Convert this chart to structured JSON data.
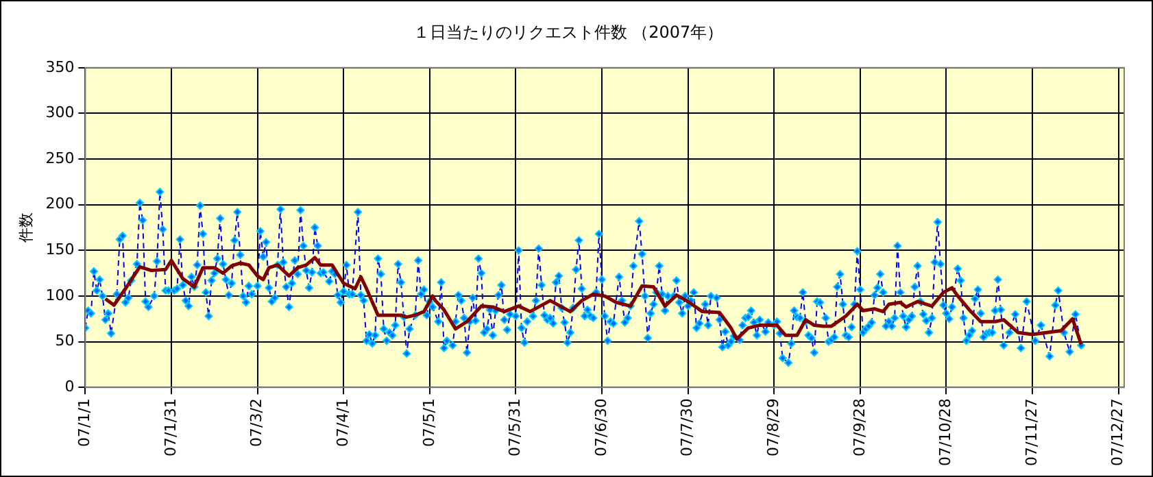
{
  "chart_data": {
    "type": "line",
    "title": "１日当たりのリクエスト件数 （2007年）",
    "ylabel": "件数",
    "xlim": [
      "2007-01-01",
      "2007-12-29"
    ],
    "xticks": [
      {
        "value": "2007-01-01",
        "label": "07/1/1"
      },
      {
        "value": "2007-01-31",
        "label": "07/1/31"
      },
      {
        "value": "2007-03-02",
        "label": "07/3/2"
      },
      {
        "value": "2007-04-01",
        "label": "07/4/1"
      },
      {
        "value": "2007-05-01",
        "label": "07/5/1"
      },
      {
        "value": "2007-05-31",
        "label": "07/5/31"
      },
      {
        "value": "2007-06-30",
        "label": "07/6/30"
      },
      {
        "value": "2007-07-30",
        "label": "07/7/30"
      },
      {
        "value": "2007-08-29",
        "label": "07/8/29"
      },
      {
        "value": "2007-09-28",
        "label": "07/9/28"
      },
      {
        "value": "2007-10-28",
        "label": "07/10/28"
      },
      {
        "value": "2007-11-27",
        "label": "07/11/27"
      },
      {
        "value": "2007-12-27",
        "label": "07/12/27"
      }
    ],
    "ylim": [
      0,
      350
    ],
    "yticks": [
      0,
      50,
      100,
      150,
      200,
      250,
      300,
      350
    ],
    "grid": true,
    "legend": false,
    "series": [
      {
        "color": "#0066ff",
        "marker": "diamond",
        "line_style": "dashed",
        "x": [
          "2007-01-01",
          "2007-01-02",
          "2007-01-03",
          "2007-01-04",
          "2007-01-05",
          "2007-01-06",
          "2007-01-07",
          "2007-01-08",
          "2007-01-09",
          "2007-01-10",
          "2007-01-12",
          "2007-01-13",
          "2007-01-14",
          "2007-01-15",
          "2007-01-16",
          "2007-01-17",
          "2007-01-19",
          "2007-01-20",
          "2007-01-21",
          "2007-01-22",
          "2007-01-23",
          "2007-01-25",
          "2007-01-26",
          "2007-01-27",
          "2007-01-28",
          "2007-01-29",
          "2007-01-30",
          "2007-02-01",
          "2007-02-02",
          "2007-02-03",
          "2007-02-04",
          "2007-02-05",
          "2007-02-06",
          "2007-02-07",
          "2007-02-08",
          "2007-02-09",
          "2007-02-10",
          "2007-02-11",
          "2007-02-12",
          "2007-02-13",
          "2007-02-14",
          "2007-02-15",
          "2007-02-16",
          "2007-02-17",
          "2007-02-18",
          "2007-02-19",
          "2007-02-20",
          "2007-02-21",
          "2007-02-22",
          "2007-02-23",
          "2007-02-24",
          "2007-02-25",
          "2007-02-26",
          "2007-02-27",
          "2007-02-28",
          "2007-03-02",
          "2007-03-03",
          "2007-03-04",
          "2007-03-05",
          "2007-03-06",
          "2007-03-07",
          "2007-03-08",
          "2007-03-09",
          "2007-03-10",
          "2007-03-11",
          "2007-03-12",
          "2007-03-13",
          "2007-03-14",
          "2007-03-15",
          "2007-03-16",
          "2007-03-17",
          "2007-03-18",
          "2007-03-19",
          "2007-03-20",
          "2007-03-21",
          "2007-03-22",
          "2007-03-23",
          "2007-03-24",
          "2007-03-25",
          "2007-03-27",
          "2007-03-28",
          "2007-03-29",
          "2007-03-30",
          "2007-03-31",
          "2007-04-01",
          "2007-04-02",
          "2007-04-03",
          "2007-04-04",
          "2007-04-06",
          "2007-04-07",
          "2007-04-08",
          "2007-04-09",
          "2007-04-10",
          "2007-04-11",
          "2007-04-12",
          "2007-04-13",
          "2007-04-14",
          "2007-04-15",
          "2007-04-16",
          "2007-04-17",
          "2007-04-18",
          "2007-04-19",
          "2007-04-20",
          "2007-04-21",
          "2007-04-22",
          "2007-04-23",
          "2007-04-24",
          "2007-04-26",
          "2007-04-27",
          "2007-04-28",
          "2007-04-29",
          "2007-04-30",
          "2007-05-01",
          "2007-05-02",
          "2007-05-04",
          "2007-05-05",
          "2007-05-06",
          "2007-05-07",
          "2007-05-09",
          "2007-05-10",
          "2007-05-11",
          "2007-05-12",
          "2007-05-13",
          "2007-05-14",
          "2007-05-15",
          "2007-05-16",
          "2007-05-17",
          "2007-05-18",
          "2007-05-19",
          "2007-05-20",
          "2007-05-21",
          "2007-05-22",
          "2007-05-23",
          "2007-05-24",
          "2007-05-25",
          "2007-05-26",
          "2007-05-27",
          "2007-05-28",
          "2007-05-29",
          "2007-05-31",
          "2007-06-01",
          "2007-06-02",
          "2007-06-03",
          "2007-06-04",
          "2007-06-06",
          "2007-06-07",
          "2007-06-08",
          "2007-06-09",
          "2007-06-10",
          "2007-06-11",
          "2007-06-12",
          "2007-06-13",
          "2007-06-14",
          "2007-06-15",
          "2007-06-16",
          "2007-06-17",
          "2007-06-18",
          "2007-06-19",
          "2007-06-20",
          "2007-06-21",
          "2007-06-22",
          "2007-06-23",
          "2007-06-24",
          "2007-06-25",
          "2007-06-26",
          "2007-06-27",
          "2007-06-28",
          "2007-06-29",
          "2007-06-30",
          "2007-07-01",
          "2007-07-02",
          "2007-07-03",
          "2007-07-04",
          "2007-07-06",
          "2007-07-07",
          "2007-07-08",
          "2007-07-09",
          "2007-07-10",
          "2007-07-11",
          "2007-07-13",
          "2007-07-14",
          "2007-07-15",
          "2007-07-16",
          "2007-07-17",
          "2007-07-18",
          "2007-07-19",
          "2007-07-20",
          "2007-07-21",
          "2007-07-22",
          "2007-07-23",
          "2007-07-25",
          "2007-07-26",
          "2007-07-27",
          "2007-07-28",
          "2007-07-29",
          "2007-07-30",
          "2007-07-31",
          "2007-08-01",
          "2007-08-02",
          "2007-08-03",
          "2007-08-05",
          "2007-08-06",
          "2007-08-07",
          "2007-08-09",
          "2007-08-10",
          "2007-08-11",
          "2007-08-12",
          "2007-08-13",
          "2007-08-14",
          "2007-08-15",
          "2007-08-17",
          "2007-08-18",
          "2007-08-19",
          "2007-08-20",
          "2007-08-21",
          "2007-08-22",
          "2007-08-23",
          "2007-08-24",
          "2007-08-26",
          "2007-08-27",
          "2007-08-29",
          "2007-08-30",
          "2007-08-31",
          "2007-09-01",
          "2007-09-03",
          "2007-09-04",
          "2007-09-05",
          "2007-09-06",
          "2007-09-07",
          "2007-09-08",
          "2007-09-09",
          "2007-09-10",
          "2007-09-11",
          "2007-09-12",
          "2007-09-13",
          "2007-09-14",
          "2007-09-16",
          "2007-09-17",
          "2007-09-18",
          "2007-09-19",
          "2007-09-20",
          "2007-09-21",
          "2007-09-22",
          "2007-09-23",
          "2007-09-24",
          "2007-09-25",
          "2007-09-26",
          "2007-09-27",
          "2007-09-28",
          "2007-09-29",
          "2007-09-30",
          "2007-10-01",
          "2007-10-02",
          "2007-10-03",
          "2007-10-04",
          "2007-10-05",
          "2007-10-06",
          "2007-10-07",
          "2007-10-08",
          "2007-10-09",
          "2007-10-10",
          "2007-10-11",
          "2007-10-12",
          "2007-10-13",
          "2007-10-14",
          "2007-10-15",
          "2007-10-16",
          "2007-10-17",
          "2007-10-18",
          "2007-10-19",
          "2007-10-20",
          "2007-10-21",
          "2007-10-22",
          "2007-10-23",
          "2007-10-24",
          "2007-10-25",
          "2007-10-26",
          "2007-10-27",
          "2007-10-28",
          "2007-10-29",
          "2007-10-30",
          "2007-11-01",
          "2007-11-02",
          "2007-11-03",
          "2007-11-04",
          "2007-11-05",
          "2007-11-06",
          "2007-11-07",
          "2007-11-08",
          "2007-11-09",
          "2007-11-10",
          "2007-11-11",
          "2007-11-12",
          "2007-11-13",
          "2007-11-14",
          "2007-11-15",
          "2007-11-16",
          "2007-11-17",
          "2007-11-19",
          "2007-11-21",
          "2007-11-23",
          "2007-11-25",
          "2007-11-28",
          "2007-11-30",
          "2007-12-03",
          "2007-12-05",
          "2007-12-06",
          "2007-12-08",
          "2007-12-10",
          "2007-12-12",
          "2007-12-14"
        ],
        "values": [
          65,
          84,
          81,
          127,
          106,
          118,
          100,
          74,
          81,
          59,
          102,
          162,
          166,
          93,
          98,
          117,
          135,
          202,
          183,
          94,
          88,
          100,
          138,
          214,
          173,
          106,
          106,
          106,
          108,
          162,
          112,
          95,
          89,
          121,
          110,
          134,
          199,
          168,
          104,
          78,
          117,
          125,
          141,
          185,
          135,
          118,
          101,
          114,
          161,
          192,
          145,
          100,
          93,
          111,
          102,
          111,
          171,
          143,
          159,
          109,
          94,
          98,
          134,
          195,
          137,
          110,
          88,
          114,
          139,
          124,
          194,
          155,
          128,
          109,
          126,
          175,
          155,
          125,
          126,
          116,
          127,
          124,
          101,
          93,
          105,
          134,
          102,
          102,
          192,
          101,
          95,
          51,
          58,
          48,
          57,
          141,
          124,
          64,
          51,
          60,
          57,
          68,
          135,
          115,
          77,
          37,
          64,
          79,
          139,
          102,
          107,
          79,
          94,
          88,
          72,
          115,
          43,
          51,
          46,
          72,
          101,
          95,
          76,
          38,
          72,
          98,
          73,
          141,
          125,
          60,
          64,
          85,
          57,
          84,
          101,
          112,
          74,
          63,
          80,
          78,
          150,
          65,
          49,
          72,
          78,
          95,
          152,
          112,
          79,
          74,
          76,
          70,
          115,
          122,
          87,
          71,
          49,
          60,
          87,
          129,
          161,
          108,
          78,
          85,
          78,
          76,
          104,
          168,
          118,
          78,
          51,
          72,
          70,
          121,
          95,
          71,
          76,
          89,
          133,
          182,
          146,
          100,
          54,
          81,
          91,
          104,
          133,
          102,
          84,
          100,
          100,
          117,
          93,
          81,
          100,
          89,
          95,
          104,
          65,
          70,
          91,
          68,
          100,
          98,
          74,
          44,
          61,
          46,
          50,
          56,
          52,
          68,
          76,
          77,
          84,
          71,
          57,
          74,
          61,
          71,
          68,
          72,
          59,
          32,
          27,
          48,
          84,
          77,
          76,
          104,
          72,
          57,
          54,
          38,
          94,
          93,
          76,
          50,
          52,
          55,
          110,
          124,
          91,
          57,
          55,
          66,
          91,
          149,
          107,
          60,
          64,
          67,
          71,
          101,
          109,
          124,
          104,
          67,
          72,
          67,
          76,
          155,
          104,
          78,
          66,
          74,
          78,
          110,
          133,
          94,
          80,
          73,
          60,
          76,
          137,
          181,
          135,
          90,
          81,
          75,
          88,
          130,
          117,
          76,
          51,
          57,
          62,
          97,
          107,
          81,
          55,
          59,
          60,
          60,
          84,
          118,
          85,
          46,
          60,
          80,
          43,
          94,
          51,
          68,
          34,
          90,
          106,
          60,
          39,
          80,
          46
        ]
      },
      {
        "color": "#800000",
        "marker": "none",
        "line_style": "solid",
        "x": [
          "2007-01-08",
          "2007-01-11",
          "2007-01-15",
          "2007-01-20",
          "2007-01-24",
          "2007-01-29",
          "2007-01-31",
          "2007-02-04",
          "2007-02-08",
          "2007-02-11",
          "2007-02-15",
          "2007-02-18",
          "2007-02-21",
          "2007-02-24",
          "2007-02-27",
          "2007-03-02",
          "2007-03-04",
          "2007-03-06",
          "2007-03-09",
          "2007-03-13",
          "2007-03-16",
          "2007-03-19",
          "2007-03-22",
          "2007-03-24",
          "2007-03-28",
          "2007-04-01",
          "2007-04-05",
          "2007-04-07",
          "2007-04-09",
          "2007-04-13",
          "2007-04-16",
          "2007-04-21",
          "2007-04-23",
          "2007-04-26",
          "2007-04-29",
          "2007-05-02",
          "2007-05-03",
          "2007-05-06",
          "2007-05-10",
          "2007-05-14",
          "2007-05-19",
          "2007-05-23",
          "2007-05-27",
          "2007-06-01",
          "2007-06-05",
          "2007-06-12",
          "2007-06-16",
          "2007-06-19",
          "2007-06-23",
          "2007-06-27",
          "2007-07-01",
          "2007-07-05",
          "2007-07-10",
          "2007-07-14",
          "2007-07-18",
          "2007-07-22",
          "2007-07-26",
          "2007-07-30",
          "2007-08-04",
          "2007-08-10",
          "2007-08-14",
          "2007-08-16",
          "2007-08-20",
          "2007-08-24",
          "2007-08-30",
          "2007-09-02",
          "2007-09-06",
          "2007-09-09",
          "2007-09-12",
          "2007-09-15",
          "2007-09-18",
          "2007-09-23",
          "2007-09-27",
          "2007-09-29",
          "2007-10-03",
          "2007-10-06",
          "2007-10-08",
          "2007-10-12",
          "2007-10-14",
          "2007-10-18",
          "2007-10-23",
          "2007-10-27",
          "2007-10-30",
          "2007-11-01",
          "2007-11-05",
          "2007-11-09",
          "2007-11-14",
          "2007-11-17",
          "2007-11-22",
          "2007-11-27",
          "2007-12-02",
          "2007-12-07",
          "2007-12-11",
          "2007-12-14"
        ],
        "values": [
          97,
          90,
          108,
          132,
          128,
          129,
          139,
          119,
          110,
          131,
          131,
          125,
          133,
          136,
          134,
          122,
          118,
          131,
          134,
          122,
          131,
          134,
          142,
          134,
          134,
          114,
          108,
          121,
          108,
          79,
          79,
          79,
          77,
          79,
          83,
          100,
          95,
          85,
          64,
          72,
          89,
          88,
          83,
          89,
          83,
          95,
          88,
          83,
          95,
          102,
          100,
          93,
          89,
          111,
          110,
          89,
          101,
          94,
          83,
          82,
          65,
          53,
          65,
          68,
          68,
          57,
          57,
          74,
          68,
          67,
          67,
          78,
          91,
          84,
          86,
          83,
          91,
          93,
          88,
          94,
          89,
          104,
          109,
          100,
          85,
          72,
          72,
          74,
          60,
          58,
          60,
          62,
          75,
          47
        ]
      }
    ]
  }
}
